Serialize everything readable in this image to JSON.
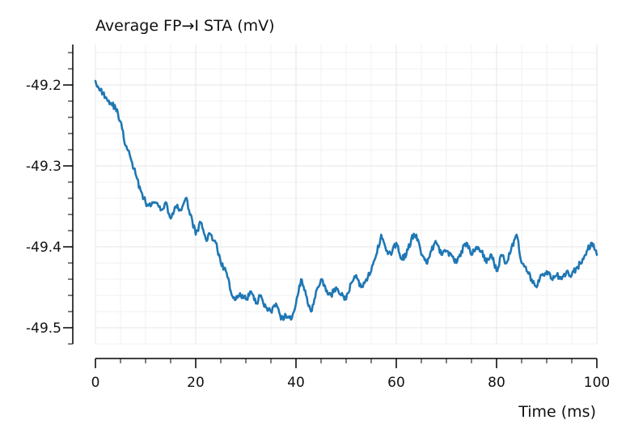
{
  "chart_data": {
    "type": "line",
    "title": "Average FP→I STA (mV)",
    "xlabel": "Time (ms)",
    "ylabel": "",
    "xlim": [
      0,
      100
    ],
    "ylim": [
      -49.52,
      -49.15
    ],
    "grid": true,
    "x_ticks": [
      0,
      20,
      40,
      60,
      80,
      100
    ],
    "x_tick_labels": [
      "0",
      "20",
      "40",
      "60",
      "80",
      "100"
    ],
    "y_ticks": [
      -49.2,
      -49.3,
      -49.4,
      -49.5
    ],
    "y_tick_labels": [
      "-49.2",
      "-49.3",
      "-49.4",
      "-49.5"
    ],
    "series": [
      {
        "name": "Average FP→I STA",
        "color": "#1f77b4",
        "x": [
          0,
          1,
          2,
          3,
          4,
          5,
          6,
          7,
          8,
          9,
          10,
          11,
          12,
          13,
          14,
          15,
          16,
          17,
          18,
          19,
          20,
          21,
          22,
          23,
          24,
          25,
          26,
          27,
          28,
          29,
          30,
          31,
          32,
          33,
          34,
          35,
          36,
          37,
          38,
          39,
          40,
          41,
          42,
          43,
          44,
          45,
          46,
          47,
          48,
          49,
          50,
          51,
          52,
          53,
          54,
          55,
          56,
          57,
          58,
          59,
          60,
          61,
          62,
          63,
          64,
          65,
          66,
          67,
          68,
          69,
          70,
          71,
          72,
          73,
          74,
          75,
          76,
          77,
          78,
          79,
          80,
          81,
          82,
          83,
          84,
          85,
          86,
          87,
          88,
          89,
          90,
          91,
          92,
          93,
          94,
          95,
          96,
          97,
          98,
          99,
          100
        ],
        "values": [
          -49.195,
          -49.205,
          -49.215,
          -49.222,
          -49.228,
          -49.245,
          -49.275,
          -49.29,
          -49.31,
          -49.33,
          -49.345,
          -49.35,
          -49.345,
          -49.355,
          -49.345,
          -49.365,
          -49.35,
          -49.355,
          -49.34,
          -49.36,
          -49.385,
          -49.37,
          -49.39,
          -49.385,
          -49.395,
          -49.42,
          -49.43,
          -49.455,
          -49.465,
          -49.46,
          -49.465,
          -49.455,
          -49.47,
          -49.46,
          -49.475,
          -49.48,
          -49.47,
          -49.49,
          -49.485,
          -49.49,
          -49.47,
          -49.44,
          -49.46,
          -49.48,
          -49.455,
          -49.44,
          -49.455,
          -49.46,
          -49.45,
          -49.46,
          -49.465,
          -49.445,
          -49.435,
          -49.45,
          -49.44,
          -49.43,
          -49.41,
          -49.385,
          -49.405,
          -49.41,
          -49.395,
          -49.415,
          -49.41,
          -49.39,
          -49.385,
          -49.41,
          -49.42,
          -49.405,
          -49.395,
          -49.41,
          -49.405,
          -49.41,
          -49.42,
          -49.405,
          -49.395,
          -49.41,
          -49.4,
          -49.405,
          -49.42,
          -49.41,
          -49.43,
          -49.41,
          -49.42,
          -49.4,
          -49.385,
          -49.42,
          -49.43,
          -49.44,
          -49.45,
          -49.435,
          -49.43,
          -49.44,
          -49.435,
          -49.44,
          -49.43,
          -49.435,
          -49.425,
          -49.42,
          -49.405,
          -49.395,
          -49.41
        ]
      }
    ]
  }
}
